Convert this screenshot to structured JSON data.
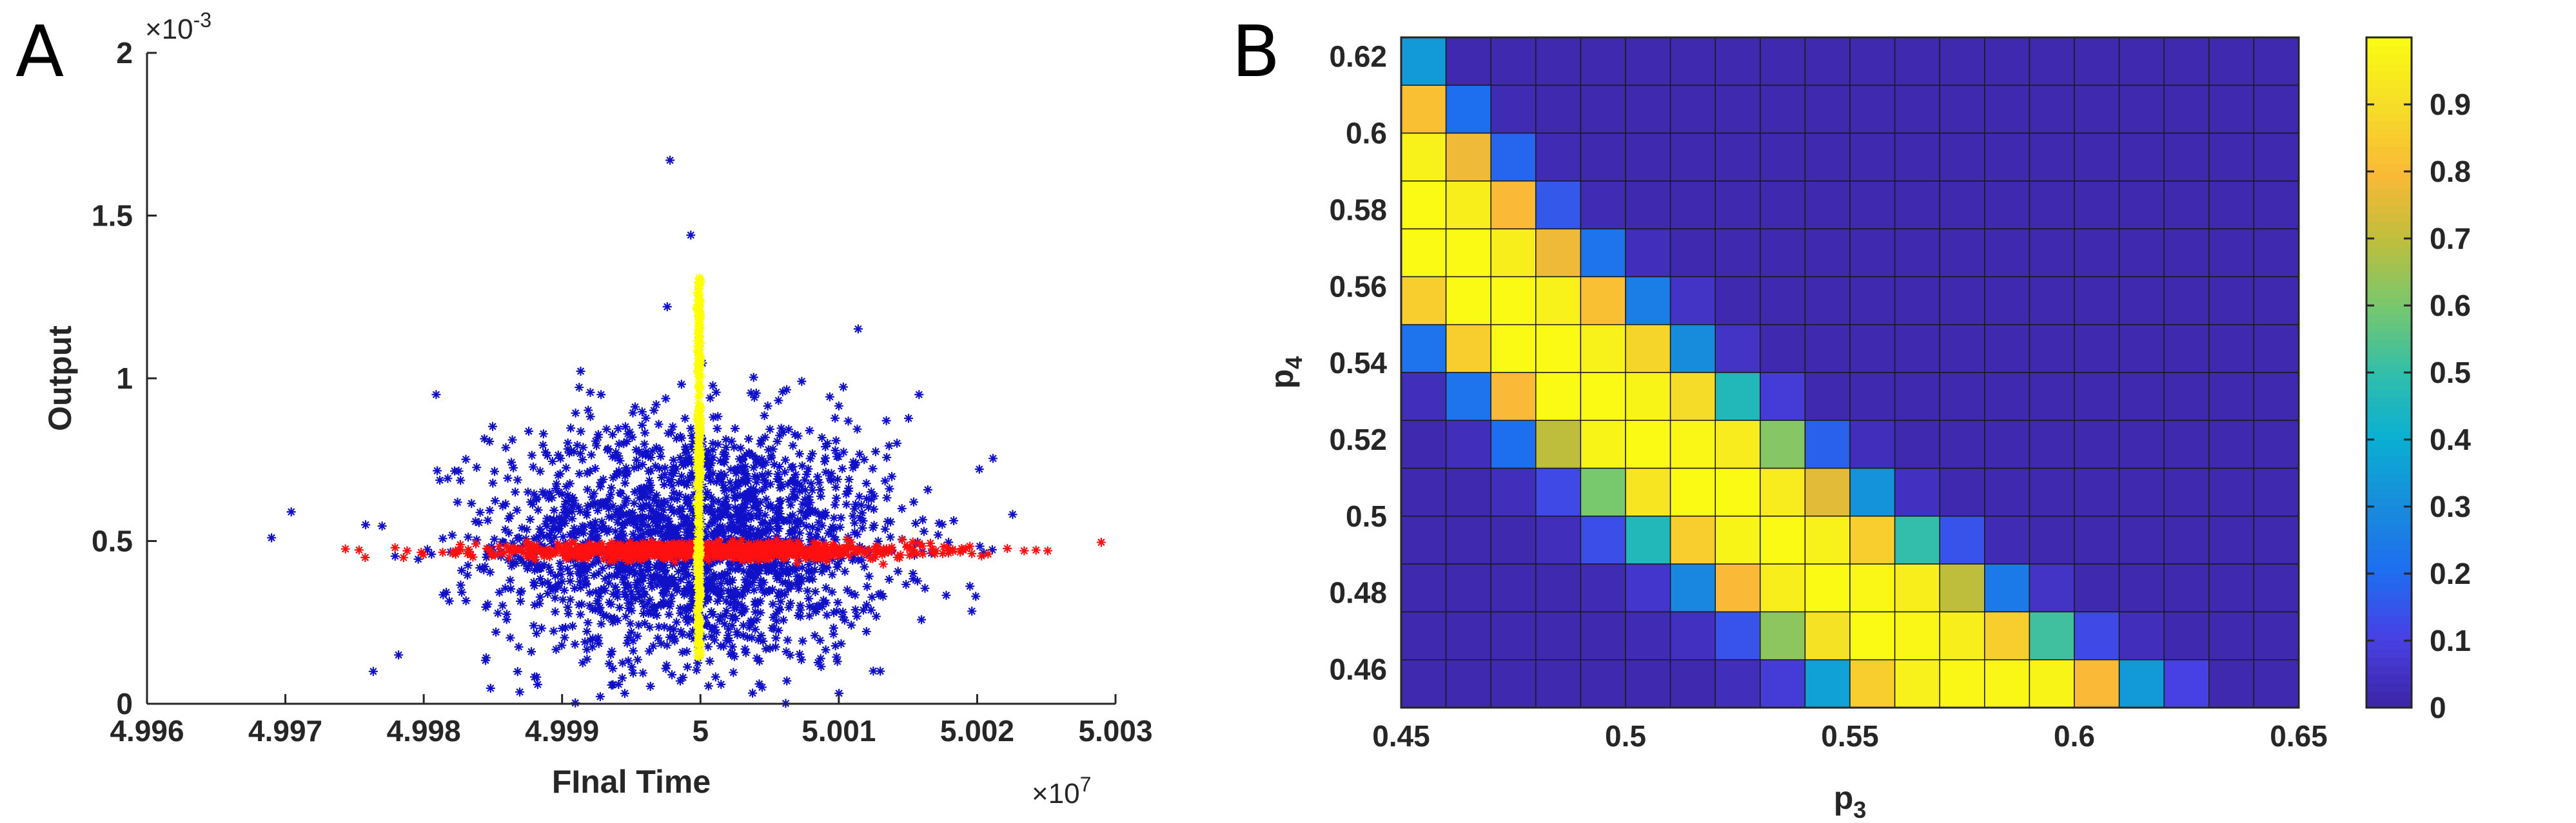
{
  "panels": {
    "a": "A",
    "b": "B"
  },
  "colors": {
    "axis": "#262626",
    "blue": "#1010c8",
    "red": "#ff1010",
    "yellow": "#ffff00"
  },
  "chart_data": [
    {
      "type": "scatter",
      "panel": "A",
      "xlabel": "FInal Time",
      "ylabel": "Output",
      "x_multiplier": "×10",
      "x_exponent": "7",
      "y_multiplier": "×10",
      "y_exponent": "-3",
      "xlim": [
        4.996,
        5.003
      ],
      "ylim": [
        0,
        2
      ],
      "xticks": [
        4.996,
        4.997,
        4.998,
        4.999,
        5,
        5.001,
        5.002,
        5.003
      ],
      "xtick_labels": [
        "4.996",
        "4.997",
        "4.998",
        "4.999",
        "5",
        "5.001",
        "5.002",
        "5.003"
      ],
      "yticks": [
        0,
        0.5,
        1,
        1.5,
        2
      ],
      "ytick_labels": [
        "0",
        "0.5",
        "1",
        "1.5",
        "2"
      ],
      "grid": false,
      "series": [
        {
          "marker": "*",
          "color": "blue",
          "description_values": "approx. 2000 points spread around x=5.000, y=0.5",
          "x_center": 4.99995,
          "x_spread": 0.00072,
          "y_center": 0.5,
          "y_spread": 0.19,
          "count": 2000,
          "outliers": [
            [
              4.9969,
              0.51
            ],
            [
              4.99978,
              1.67
            ],
            [
              4.99993,
              1.44
            ],
            [
              4.99976,
              1.22
            ],
            [
              5.00199,
              0.33
            ],
            [
              5.00158,
              0.95
            ],
            [
              4.99809,
              0.95
            ],
            [
              4.99758,
              0.55
            ],
            [
              5.00099,
              0.13
            ],
            [
              4.9995,
              0.22
            ],
            [
              5.0013,
              0.1
            ]
          ]
        },
        {
          "marker": "*",
          "color": "red",
          "x_center": 5.0,
          "x_spread": 0.0008,
          "y_center": 0.47,
          "y_spread": 0.012,
          "count": 900,
          "outliers": [
            [
              4.99788,
              0.47
            ],
            [
              5.00234,
              0.47
            ],
            [
              5.00251,
              0.47
            ],
            [
              4.99823,
              0.47
            ]
          ]
        },
        {
          "marker": "*",
          "color": "yellow",
          "x_center": 4.99999,
          "x_spread": 6e-06,
          "y_range": [
            0.14,
            1.31
          ],
          "count": 350
        }
      ]
    },
    {
      "type": "heatmap",
      "panel": "B",
      "xlabel": "p",
      "xlabel_sub": "3",
      "ylabel": "p",
      "ylabel_sub": "4",
      "x_range": [
        0.45,
        0.65
      ],
      "y_range": [
        0.45,
        0.625
      ],
      "xticks": [
        0.45,
        0.5,
        0.55,
        0.6,
        0.65
      ],
      "xtick_labels": [
        "0.45",
        "0.5",
        "0.55",
        "0.6",
        "0.65"
      ],
      "yticks": [
        0.46,
        0.48,
        0.5,
        0.52,
        0.54,
        0.56,
        0.58,
        0.6,
        0.62
      ],
      "ytick_labels": [
        "0.46",
        "0.48",
        "0.5",
        "0.52",
        "0.54",
        "0.56",
        "0.58",
        "0.6",
        "0.62"
      ],
      "colorbar_ticks": [
        0,
        0.1,
        0.2,
        0.3,
        0.4,
        0.5,
        0.6,
        0.7,
        0.8,
        0.9
      ],
      "colorbar_tick_labels": [
        "0",
        "0.1",
        "0.2",
        "0.3",
        "0.4",
        "0.5",
        "0.6",
        "0.7",
        "0.8",
        "0.9"
      ],
      "colormap": "parula",
      "rows_top_to_bottom": [
        [
          0.34,
          0.01,
          0.01,
          0.01,
          0.01,
          0.01,
          0.01,
          0.01,
          0.01,
          0.01,
          0.01,
          0.01,
          0.01,
          0.01,
          0.01,
          0.01,
          0.01,
          0.01,
          0.01,
          0.01
        ],
        [
          0.82,
          0.2,
          0.02,
          0.01,
          0.01,
          0.01,
          0.01,
          0.01,
          0.01,
          0.01,
          0.01,
          0.01,
          0.01,
          0.01,
          0.01,
          0.01,
          0.01,
          0.01,
          0.01,
          0.01
        ],
        [
          0.97,
          0.78,
          0.18,
          0.02,
          0.01,
          0.01,
          0.01,
          0.01,
          0.01,
          0.01,
          0.01,
          0.01,
          0.01,
          0.01,
          0.01,
          0.01,
          0.01,
          0.01,
          0.01,
          0.01
        ],
        [
          1.0,
          0.96,
          0.8,
          0.15,
          0.02,
          0.01,
          0.01,
          0.01,
          0.01,
          0.01,
          0.01,
          0.01,
          0.01,
          0.01,
          0.01,
          0.01,
          0.01,
          0.01,
          0.01,
          0.01
        ],
        [
          1.0,
          1.0,
          0.96,
          0.78,
          0.22,
          0.03,
          0.01,
          0.01,
          0.01,
          0.01,
          0.01,
          0.01,
          0.01,
          0.01,
          0.01,
          0.01,
          0.01,
          0.01,
          0.01,
          0.01
        ],
        [
          0.86,
          1.0,
          1.0,
          0.97,
          0.82,
          0.25,
          0.05,
          0.01,
          0.01,
          0.01,
          0.01,
          0.01,
          0.01,
          0.01,
          0.01,
          0.01,
          0.01,
          0.01,
          0.01,
          0.01
        ],
        [
          0.22,
          0.86,
          1.0,
          1.0,
          0.97,
          0.88,
          0.3,
          0.05,
          0.01,
          0.01,
          0.01,
          0.01,
          0.01,
          0.01,
          0.01,
          0.01,
          0.01,
          0.01,
          0.01,
          0.01
        ],
        [
          0.03,
          0.22,
          0.8,
          1.0,
          1.0,
          0.98,
          0.9,
          0.46,
          0.08,
          0.01,
          0.01,
          0.01,
          0.01,
          0.01,
          0.01,
          0.01,
          0.01,
          0.01,
          0.01,
          0.01
        ],
        [
          0.01,
          0.03,
          0.2,
          0.7,
          0.98,
          1.0,
          0.99,
          0.95,
          0.62,
          0.17,
          0.03,
          0.01,
          0.01,
          0.01,
          0.01,
          0.01,
          0.01,
          0.01,
          0.01,
          0.01
        ],
        [
          0.01,
          0.01,
          0.03,
          0.12,
          0.6,
          0.93,
          1.0,
          1.0,
          0.95,
          0.76,
          0.32,
          0.04,
          0.01,
          0.01,
          0.01,
          0.01,
          0.01,
          0.01,
          0.01,
          0.01
        ],
        [
          0.01,
          0.01,
          0.01,
          0.03,
          0.13,
          0.46,
          0.86,
          0.98,
          1.0,
          0.97,
          0.86,
          0.5,
          0.14,
          0.02,
          0.01,
          0.01,
          0.01,
          0.01,
          0.01,
          0.01
        ],
        [
          0.01,
          0.01,
          0.01,
          0.01,
          0.02,
          0.06,
          0.28,
          0.8,
          0.96,
          1.0,
          0.99,
          0.96,
          0.7,
          0.24,
          0.05,
          0.01,
          0.01,
          0.01,
          0.01,
          0.01
        ],
        [
          0.01,
          0.01,
          0.01,
          0.01,
          0.01,
          0.02,
          0.04,
          0.14,
          0.63,
          0.92,
          1.0,
          0.99,
          0.96,
          0.86,
          0.52,
          0.12,
          0.03,
          0.01,
          0.01,
          0.01
        ],
        [
          0.01,
          0.01,
          0.01,
          0.01,
          0.01,
          0.01,
          0.01,
          0.03,
          0.08,
          0.36,
          0.86,
          0.97,
          0.99,
          0.99,
          0.98,
          0.8,
          0.34,
          0.1,
          0.01,
          0.01
        ]
      ]
    }
  ]
}
